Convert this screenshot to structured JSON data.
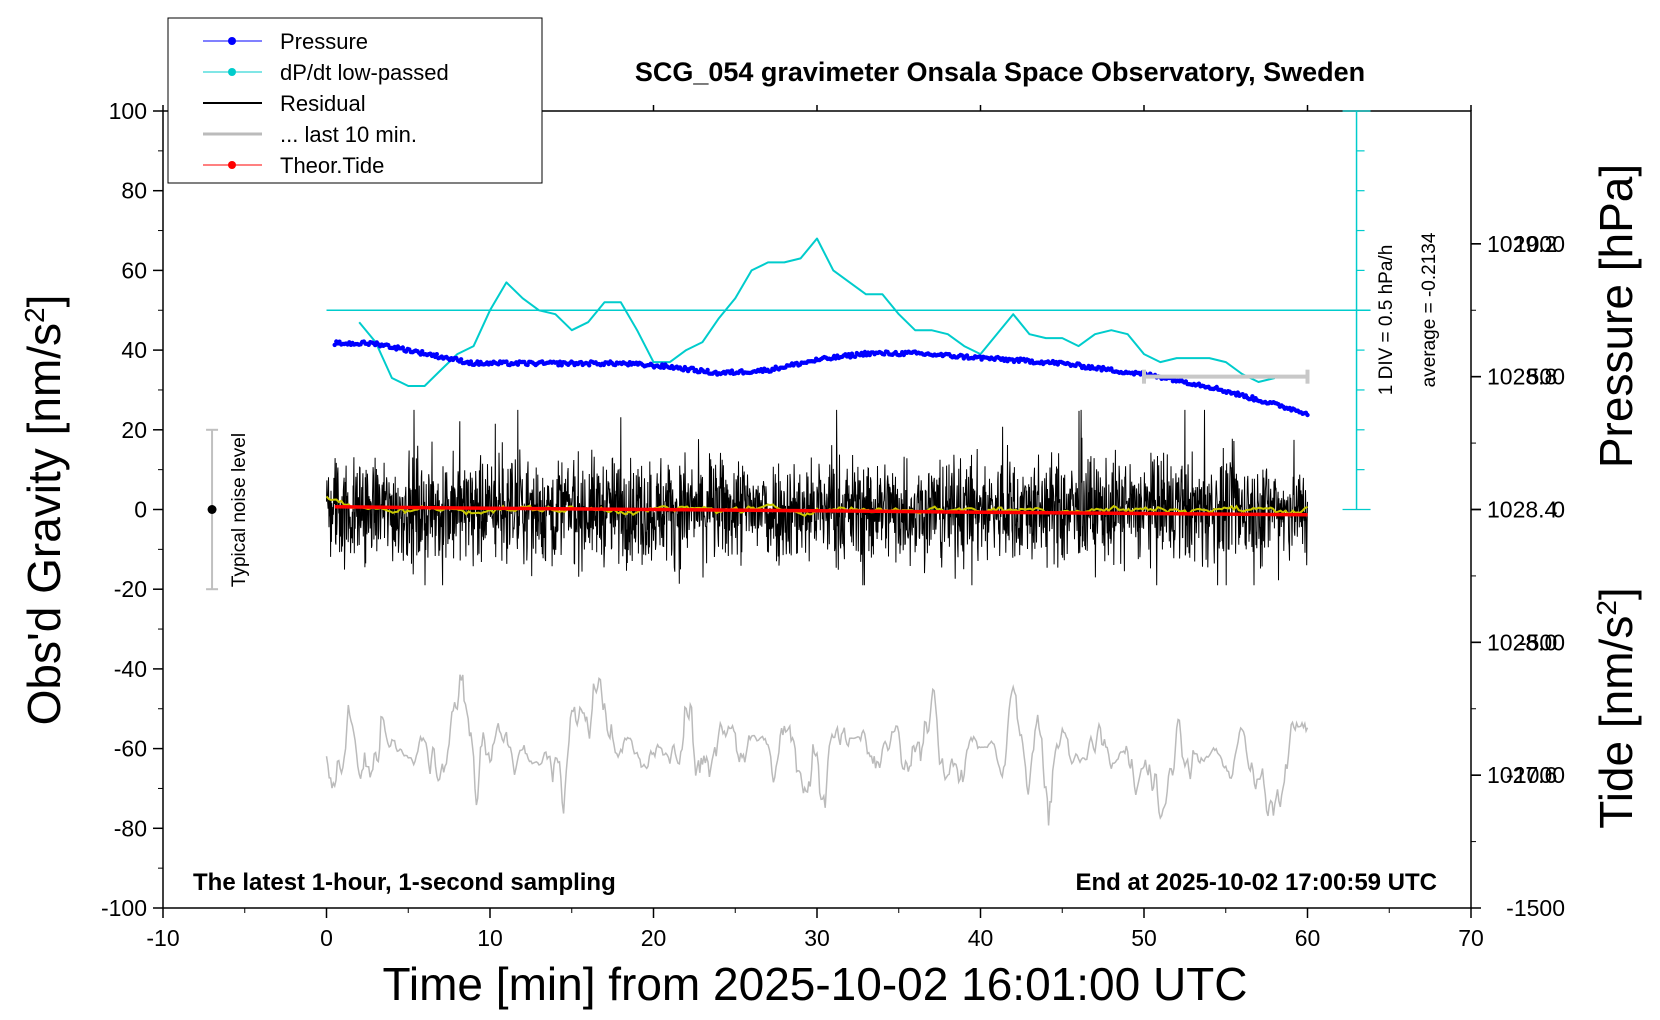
{
  "chart_data": {
    "type": "line",
    "title": "SCG_054 gravimeter Onsala Space Observatory, Sweden",
    "xlabel": "Time [min] from 2025-10-02 16:01:00 UTC",
    "ylabel_left": "Obs'd Gravity [nm/s",
    "ylabel_left_sup": "2",
    "ylabel_left_end": "]",
    "ylabel_right_pressure": "Pressure [hPa]",
    "ylabel_right_tide": "Tide [nm/s",
    "ylabel_right_tide_sup": "2",
    "ylabel_right_tide_end": "]",
    "xlim": [
      -10,
      70
    ],
    "ylim_gravity": [
      -100,
      100
    ],
    "pressure_range": [
      1027.2,
      1029.6
    ],
    "tide_range": [
      -1500,
      1500
    ],
    "x_ticks": [
      -10,
      0,
      10,
      20,
      30,
      40,
      50,
      60,
      70
    ],
    "gravity_ticks": [
      -100,
      -80,
      -60,
      -40,
      -20,
      0,
      20,
      40,
      60,
      80,
      100
    ],
    "pressure_ticks": [
      1027.6,
      1028.0,
      1028.4,
      1028.8,
      1029.2
    ],
    "tide_ticks": [
      -1500,
      -1000,
      -500,
      0,
      500,
      1000
    ],
    "legend": [
      "Pressure",
      "dP/dt low-passed",
      "Residual",
      "... last 10 min.",
      "Theor.Tide"
    ],
    "legend_placement": "top-left",
    "annotation_left": "The latest 1-hour, 1-second sampling",
    "annotation_right": "End at 2025-10-02 17:00:59 UTC",
    "noise_label": "Typical noise level",
    "dpdt_div_label": "1 DIV = 0.5 hPa/h",
    "dpdt_average_label": "average = -0.2134",
    "dpdt_scale": {
      "x_minute": 63,
      "zero_gravity": 50,
      "bottom_gravity": 0,
      "top_gravity": 100,
      "divisions": 10
    },
    "noise_bar": {
      "x_minute": -7,
      "low": -20,
      "high": 20,
      "center": 0
    },
    "last10_bar": {
      "x_start": 50,
      "x_end": 60,
      "tide_value": 500
    },
    "series": [
      {
        "name": "Pressure",
        "color": "#0000ff",
        "axis": "pressure",
        "x": [
          0.5,
          3,
          6,
          9,
          12,
          15,
          18,
          21,
          24,
          27,
          30,
          33,
          36,
          39,
          42,
          45,
          48,
          51,
          54,
          57,
          60
        ],
        "values": [
          1028.9,
          1028.9,
          1028.87,
          1028.84,
          1028.84,
          1028.84,
          1028.84,
          1028.83,
          1028.81,
          1028.82,
          1028.85,
          1028.87,
          1028.87,
          1028.86,
          1028.85,
          1028.84,
          1028.82,
          1028.8,
          1028.77,
          1028.73,
          1028.69
        ]
      },
      {
        "name": "dP/dt low-passed",
        "color": "#00cccc",
        "axis": "gravity",
        "x": [
          2,
          3,
          4,
          5,
          6,
          7,
          8,
          9,
          10,
          11,
          12,
          13,
          14,
          15,
          16,
          17,
          18,
          19,
          20,
          21,
          22,
          23,
          24,
          25,
          26,
          27,
          28,
          29,
          30,
          31,
          32,
          33,
          34,
          35,
          36,
          37,
          38,
          39,
          40,
          41,
          42,
          43,
          44,
          45,
          46,
          47,
          48,
          49,
          50,
          51,
          52,
          53,
          54,
          55,
          56,
          57,
          58
        ],
        "values": [
          47,
          42,
          33,
          31,
          31,
          35,
          39,
          41,
          50,
          57,
          53,
          50,
          49,
          45,
          47,
          52,
          52,
          45,
          37,
          37,
          40,
          42,
          48,
          53,
          60,
          62,
          62,
          63,
          68,
          60,
          57,
          54,
          54,
          49,
          45,
          45,
          44,
          41,
          39,
          44,
          49,
          44,
          43,
          43,
          41,
          44,
          45,
          44,
          39,
          37,
          38,
          38,
          38,
          37,
          34,
          32,
          33
        ]
      },
      {
        "name": "Residual",
        "color": "#000000",
        "axis": "gravity",
        "x_range": [
          0,
          60
        ],
        "typical_amplitude": 15,
        "moving_average_color": "#c8c800"
      },
      {
        "name": "... last 10 min.",
        "color": "#bbbbbb",
        "axis": "gravity",
        "x_range": [
          0,
          60
        ],
        "offset": -60,
        "typical_amplitude": 8
      },
      {
        "name": "Theor.Tide",
        "color": "#ff0000",
        "axis": "tide",
        "x": [
          0.5,
          10,
          20,
          30,
          40,
          50,
          60
        ],
        "values": [
          10,
          5,
          0,
          -5,
          -10,
          -15,
          -20
        ]
      }
    ]
  },
  "colors": {
    "pressure": "#0000ff",
    "dpdt": "#00cccc",
    "residual": "#000000",
    "moving_average": "#c8c800",
    "last10": "#bbbbbb",
    "tide": "#ff0000",
    "scale_bar": "#c8c8c8",
    "noise_bar": "#c0c0c0"
  }
}
